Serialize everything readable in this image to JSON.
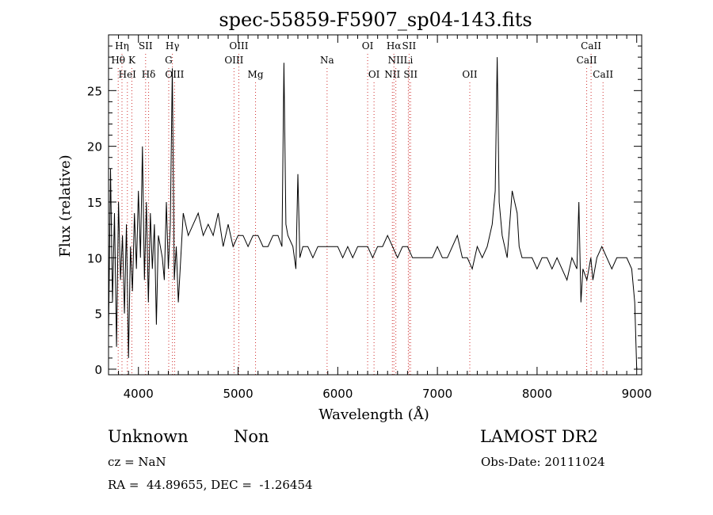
{
  "chart_data": {
    "type": "line",
    "title": "spec-55859-F5907_sp04-143.fits",
    "xlabel": "Wavelength (Å)",
    "ylabel": "Flux (relative)",
    "xlim": [
      3700,
      9050
    ],
    "ylim": [
      -0.5,
      30
    ],
    "xticks": [
      4000,
      5000,
      6000,
      7000,
      8000,
      9000
    ],
    "yticks": [
      0,
      5,
      10,
      15,
      20,
      25
    ],
    "grid": false,
    "series": [
      {
        "x": [
          3700,
          3720,
          3740,
          3760,
          3780,
          3800,
          3820,
          3840,
          3860,
          3880,
          3900,
          3920,
          3940,
          3960,
          3980,
          4000,
          4020,
          4040,
          4060,
          4080,
          4100,
          4120,
          4140,
          4160,
          4180,
          4200,
          4220,
          4240,
          4260,
          4280,
          4300,
          4320,
          4340,
          4360,
          4380,
          4400,
          4450,
          4500,
          4550,
          4600,
          4650,
          4700,
          4750,
          4800,
          4850,
          4900,
          4950,
          5000,
          5050,
          5100,
          5150,
          5200,
          5250,
          5300,
          5350,
          5400,
          5440,
          5460,
          5480,
          5500,
          5550,
          5580,
          5600,
          5620,
          5650,
          5700,
          5750,
          5800,
          5850,
          5900,
          5950,
          6000,
          6050,
          6100,
          6150,
          6200,
          6250,
          6300,
          6350,
          6400,
          6450,
          6500,
          6550,
          6600,
          6650,
          6700,
          6750,
          6800,
          6850,
          6900,
          6950,
          7000,
          7050,
          7100,
          7150,
          7200,
          7250,
          7300,
          7350,
          7400,
          7450,
          7500,
          7550,
          7580,
          7600,
          7620,
          7650,
          7700,
          7750,
          7800,
          7820,
          7850,
          7900,
          7950,
          8000,
          8050,
          8100,
          8150,
          8200,
          8250,
          8300,
          8350,
          8400,
          8420,
          8440,
          8460,
          8500,
          8540,
          8560,
          8600,
          8650,
          8700,
          8750,
          8800,
          8850,
          8900,
          8950,
          8980,
          9000
        ],
        "y": [
          3,
          18,
          6,
          14,
          2,
          15,
          8,
          12,
          5,
          13,
          1,
          11,
          7,
          14,
          9,
          16,
          10,
          20,
          8,
          15,
          6,
          14,
          9,
          13,
          4,
          12,
          11,
          10,
          8,
          15,
          9,
          13,
          27,
          8,
          11,
          6,
          14,
          12,
          13,
          14,
          12,
          13,
          12,
          14,
          11,
          13,
          11,
          12,
          12,
          11,
          12,
          12,
          11,
          11,
          12,
          12,
          11,
          27.5,
          13,
          12,
          11,
          9,
          17.5,
          10,
          11,
          11,
          10,
          11,
          11,
          11,
          11,
          11,
          10,
          11,
          10,
          11,
          11,
          11,
          10,
          11,
          11,
          12,
          11,
          10,
          11,
          11,
          10,
          10,
          10,
          10,
          10,
          11,
          10,
          10,
          11,
          12,
          10,
          10,
          9,
          11,
          10,
          11,
          13,
          16,
          28,
          15,
          12,
          10,
          16,
          14,
          11,
          10,
          10,
          10,
          9,
          10,
          10,
          9,
          10,
          9,
          8,
          10,
          9,
          15,
          6,
          9,
          8,
          10,
          8,
          10,
          11,
          10,
          9,
          10,
          10,
          10,
          9,
          6,
          0
        ]
      }
    ],
    "line_labels": [
      {
        "label": "Hη",
        "x": 3835,
        "row": 1
      },
      {
        "label": "Hθ",
        "x": 3797,
        "row": 2
      },
      {
        "label": "K",
        "x": 3934,
        "row": 2
      },
      {
        "label": "HeI",
        "x": 3889,
        "row": 3
      },
      {
        "label": "SII",
        "x": 4072,
        "row": 1
      },
      {
        "label": "Hδ",
        "x": 4102,
        "row": 3
      },
      {
        "label": "Hγ",
        "x": 4341,
        "row": 1
      },
      {
        "label": "G",
        "x": 4304,
        "row": 2
      },
      {
        "label": "OIII",
        "x": 4363,
        "row": 3
      },
      {
        "label": "OIII",
        "x": 5007,
        "row": 1
      },
      {
        "label": "OIII",
        "x": 4959,
        "row": 2
      },
      {
        "label": "Mg",
        "x": 5175,
        "row": 3
      },
      {
        "label": "Na",
        "x": 5893,
        "row": 2
      },
      {
        "label": "OI",
        "x": 6300,
        "row": 1
      },
      {
        "label": "OI",
        "x": 6364,
        "row": 3
      },
      {
        "label": "Hα",
        "x": 6563,
        "row": 1
      },
      {
        "label": "SII",
        "x": 6716,
        "row": 1
      },
      {
        "label": "NII",
        "x": 6583,
        "row": 2
      },
      {
        "label": "Li",
        "x": 6708,
        "row": 2
      },
      {
        "label": "NII",
        "x": 6548,
        "row": 3
      },
      {
        "label": "SII",
        "x": 6731,
        "row": 3
      },
      {
        "label": "OII",
        "x": 7325,
        "row": 3
      },
      {
        "label": "CaII",
        "x": 8542,
        "row": 1
      },
      {
        "label": "CaII",
        "x": 8498,
        "row": 2
      },
      {
        "label": "CaII",
        "x": 8662,
        "row": 3
      }
    ],
    "line_marker_color": "#d03030"
  },
  "info": {
    "class": "Unknown",
    "subclass": "Non",
    "survey": "LAMOST DR2",
    "cz": "cz = NaN",
    "obs_date": "Obs-Date: 20111024",
    "coords": "RA =  44.89655, DEC =  -1.26454"
  }
}
